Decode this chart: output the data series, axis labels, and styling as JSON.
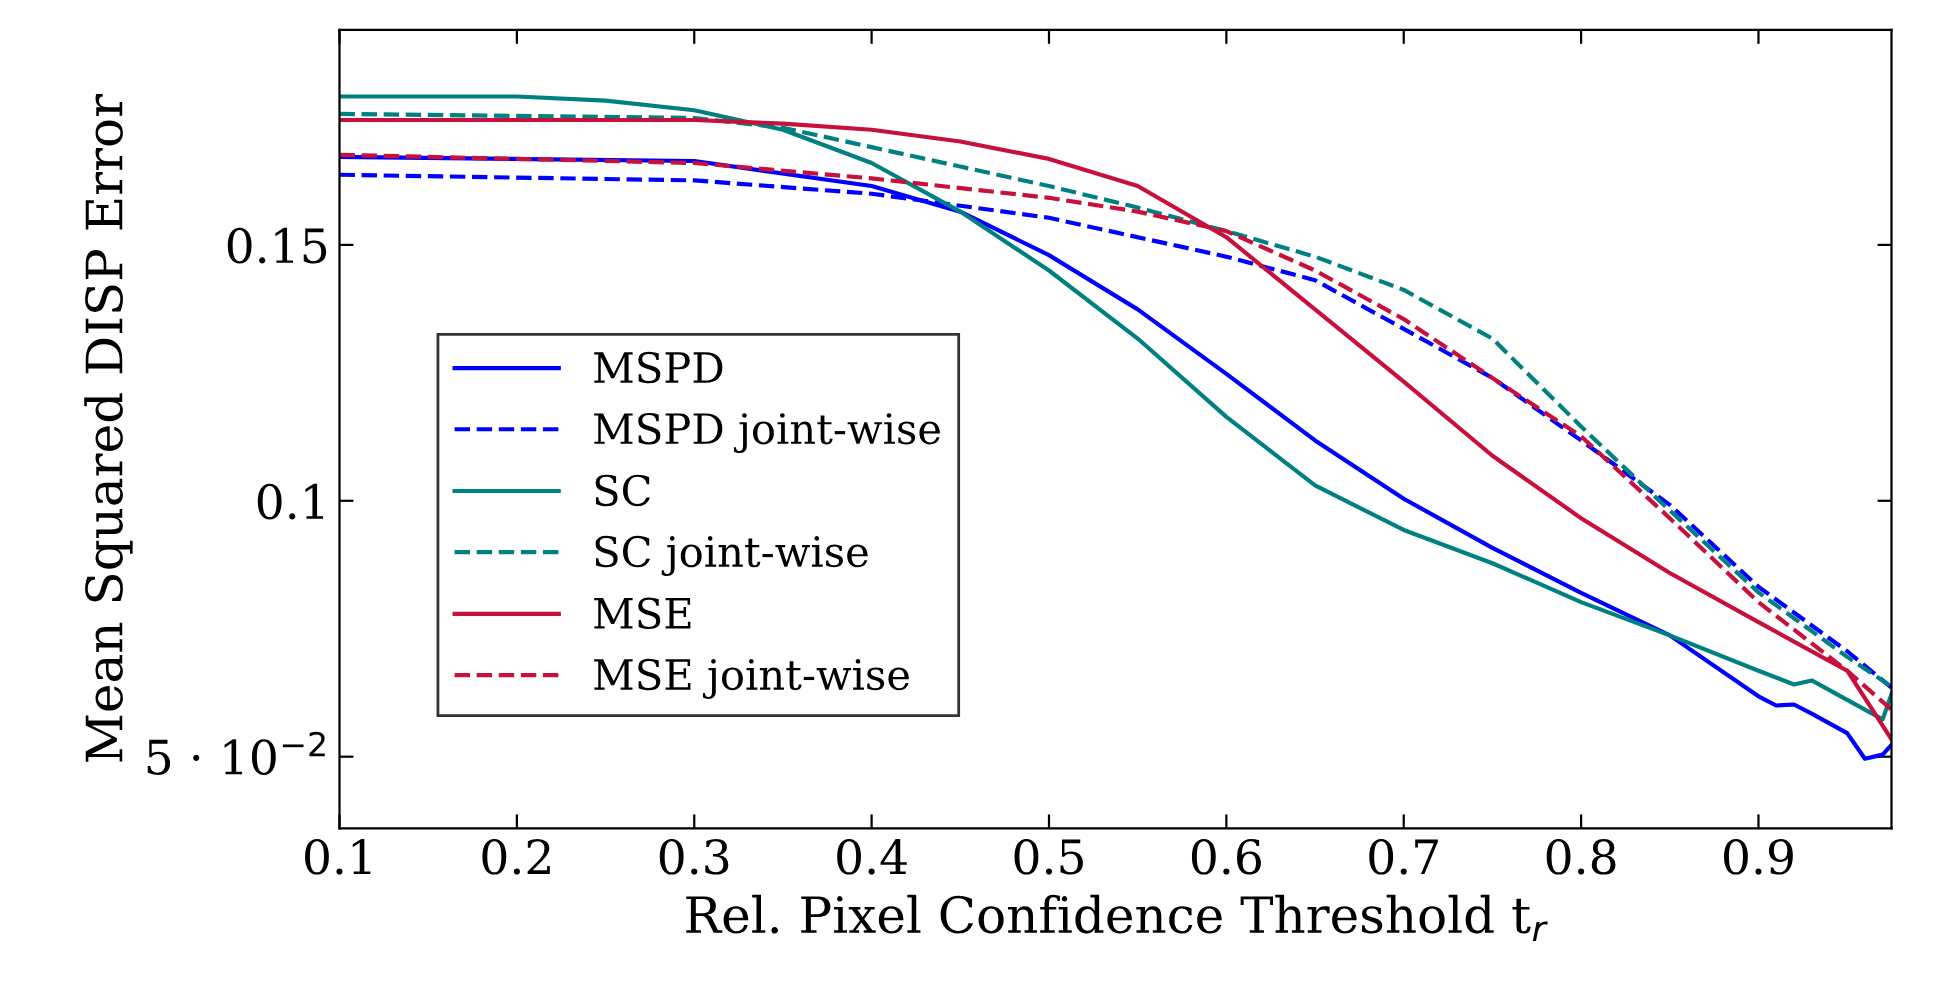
{
  "chart_data": {
    "type": "line",
    "xlabel": "Rel. Pixel Confidence Threshold t$_{r}$",
    "ylabel": "Mean Squared DISP Error",
    "xlim": [
      0.1,
      0.975
    ],
    "ylim": [
      0.036,
      0.192
    ],
    "xticks": [
      0.1,
      0.2,
      0.3,
      0.4,
      0.5,
      0.6,
      0.7,
      0.8,
      0.9
    ],
    "yticks": [
      {
        "value": 0.05,
        "label": "5 · 10$^{−2}$"
      },
      {
        "value": 0.1,
        "label": "0.1"
      },
      {
        "value": 0.15,
        "label": "0.15"
      }
    ],
    "grid": false,
    "legend": "center left",
    "marker": "none",
    "series": [
      {
        "name": "MSPD",
        "color": "#0000ff",
        "line_style": "solid",
        "x": [
          0.1,
          0.3,
          0.4,
          0.45,
          0.5,
          0.55,
          0.6,
          0.65,
          0.7,
          0.75,
          0.8,
          0.85,
          0.9,
          0.91,
          0.92,
          0.93,
          0.95,
          0.96,
          0.97,
          0.975
        ],
        "values": [
          0.1672,
          0.1664,
          0.1615,
          0.1565,
          0.148,
          0.1374,
          0.1248,
          0.1118,
          0.1004,
          0.0908,
          0.082,
          0.0737,
          0.0618,
          0.06,
          0.0602,
          0.0584,
          0.0546,
          0.0496,
          0.0504,
          0.0523
        ]
      },
      {
        "name": "MSPD joint-wise",
        "color": "#0000ff",
        "line_style": "dashed",
        "x": [
          0.1,
          0.3,
          0.4,
          0.5,
          0.6,
          0.65,
          0.7,
          0.75,
          0.8,
          0.85,
          0.9,
          0.95,
          0.975
        ],
        "values": [
          0.1637,
          0.1626,
          0.16,
          0.1553,
          0.1477,
          0.1431,
          0.1336,
          0.124,
          0.1118,
          0.0992,
          0.0832,
          0.0706,
          0.0635
        ]
      },
      {
        "name": "SC",
        "color": "#008080",
        "line_style": "solid",
        "x": [
          0.1,
          0.2,
          0.25,
          0.3,
          0.35,
          0.4,
          0.45,
          0.5,
          0.55,
          0.6,
          0.65,
          0.7,
          0.75,
          0.8,
          0.85,
          0.9,
          0.92,
          0.93,
          0.95,
          0.97,
          0.975
        ],
        "values": [
          0.179,
          0.179,
          0.1782,
          0.1763,
          0.1725,
          0.166,
          0.1565,
          0.145,
          0.1317,
          0.1164,
          0.103,
          0.0943,
          0.0878,
          0.0802,
          0.0737,
          0.0668,
          0.0641,
          0.0649,
          0.0611,
          0.0573,
          0.0622
        ]
      },
      {
        "name": "SC joint-wise",
        "color": "#008080",
        "line_style": "dashed",
        "x": [
          0.1,
          0.3,
          0.35,
          0.4,
          0.45,
          0.5,
          0.55,
          0.6,
          0.65,
          0.7,
          0.75,
          0.8,
          0.85,
          0.9,
          0.95,
          0.975
        ],
        "values": [
          0.1756,
          0.1748,
          0.1729,
          0.1691,
          0.1653,
          0.1615,
          0.1573,
          0.1527,
          0.1477,
          0.1412,
          0.1317,
          0.1145,
          0.0981,
          0.0821,
          0.0695,
          0.0637
        ]
      },
      {
        "name": "MSE",
        "color": "#c8103c",
        "line_style": "solid",
        "x": [
          0.1,
          0.3,
          0.35,
          0.4,
          0.45,
          0.5,
          0.55,
          0.6,
          0.65,
          0.7,
          0.75,
          0.8,
          0.85,
          0.9,
          0.95,
          0.975
        ],
        "values": [
          0.1744,
          0.1744,
          0.1737,
          0.1725,
          0.1702,
          0.1668,
          0.1615,
          0.1515,
          0.1374,
          0.1233,
          0.1088,
          0.0966,
          0.0859,
          0.0763,
          0.0668,
          0.0534
        ]
      },
      {
        "name": "MSE joint-wise",
        "color": "#c8103c",
        "line_style": "dashed",
        "x": [
          0.1,
          0.3,
          0.4,
          0.5,
          0.55,
          0.6,
          0.65,
          0.7,
          0.75,
          0.8,
          0.85,
          0.9,
          0.95,
          0.975
        ],
        "values": [
          0.1676,
          0.166,
          0.163,
          0.1592,
          0.1565,
          0.1527,
          0.145,
          0.1355,
          0.124,
          0.1126,
          0.0966,
          0.0802,
          0.0668,
          0.0592
        ]
      }
    ]
  }
}
